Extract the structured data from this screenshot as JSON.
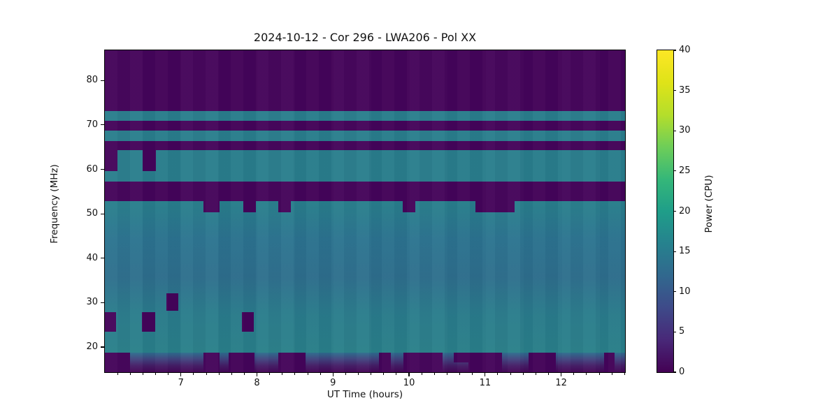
{
  "chart_data": {
    "type": "heatmap",
    "subtype": "radio-spectrogram",
    "title": "2024-10-12 - Cor 296 - LWA206 - Pol XX",
    "xlabel": "UT Time (hours)",
    "ylabel": "Frequency (MHz)",
    "xlim": [
      6.0,
      12.84
    ],
    "ylim": [
      14.35,
      86.8
    ],
    "xticks": [
      7,
      8,
      9,
      10,
      11,
      12
    ],
    "x_minor_step_hours": 0.166667,
    "yticks": [
      20,
      30,
      40,
      50,
      60,
      70,
      80
    ],
    "grid": false,
    "colorbar": {
      "label": "Power (CPU)",
      "ticks": [
        0,
        5,
        10,
        15,
        20,
        25,
        30,
        35,
        40
      ],
      "clim": [
        0,
        40
      ],
      "colormap": "viridis",
      "gradient_stops": [
        "#440154",
        "#482878",
        "#3e4a89",
        "#31688e",
        "#26828e",
        "#1f9e89",
        "#35b779",
        "#6ece58",
        "#b5de2b",
        "#dfe318",
        "#fde725"
      ]
    },
    "flag_color": "#45045a",
    "freq_bands": [
      {
        "f_low": 73.1,
        "f_high": 86.8,
        "power": 0,
        "colors": [
          "#45045a"
        ]
      },
      {
        "f_low": 71.0,
        "f_high": 73.1,
        "power": 17,
        "colors": [
          "#2a7f8d"
        ]
      },
      {
        "f_low": 68.8,
        "f_high": 71.0,
        "power": 0,
        "colors": [
          "#45045a"
        ]
      },
      {
        "f_low": 66.4,
        "f_high": 68.8,
        "power": 17,
        "colors": [
          "#2a7f8d"
        ]
      },
      {
        "f_low": 64.4,
        "f_high": 66.4,
        "power": 0,
        "colors": [
          "#45045a"
        ]
      },
      {
        "f_low": 57.3,
        "f_high": 64.4,
        "power": 17,
        "colors": [
          "#2a7f8d"
        ]
      },
      {
        "f_low": 52.8,
        "f_high": 57.3,
        "power": 0,
        "colors": [
          "#45045a"
        ]
      },
      {
        "f_low": 18.8,
        "f_high": 52.8,
        "power": "14-18",
        "colors": [
          "#28808c",
          "#2c7490",
          "#2e6f8d",
          "#2a7d8c",
          "#2a818a"
        ]
      },
      {
        "f_low": 14.35,
        "f_high": 18.8,
        "power": "0-15",
        "colors": [
          "#2e6d8e",
          "#41447f",
          "#451d66",
          "#440556"
        ]
      }
    ],
    "rfi_flag_blocks": [
      {
        "t_start": 6.0,
        "t_end": 6.17,
        "f_low": 59.6,
        "f_high": 64.4
      },
      {
        "t_start": 6.5,
        "t_end": 6.67,
        "f_low": 59.6,
        "f_high": 64.4
      },
      {
        "t_start": 7.3,
        "t_end": 7.51,
        "f_low": 50.4,
        "f_high": 52.8
      },
      {
        "t_start": 7.82,
        "t_end": 7.99,
        "f_low": 50.4,
        "f_high": 52.8
      },
      {
        "t_start": 8.28,
        "t_end": 8.45,
        "f_low": 50.4,
        "f_high": 52.8
      },
      {
        "t_start": 9.92,
        "t_end": 10.08,
        "f_low": 50.4,
        "f_high": 52.8
      },
      {
        "t_start": 10.87,
        "t_end": 11.39,
        "f_low": 50.4,
        "f_high": 52.8
      },
      {
        "t_start": 6.81,
        "t_end": 6.97,
        "f_low": 28.2,
        "f_high": 32.1
      },
      {
        "t_start": 6.0,
        "t_end": 6.15,
        "f_low": 23.5,
        "f_high": 27.9
      },
      {
        "t_start": 6.49,
        "t_end": 6.66,
        "f_low": 23.5,
        "f_high": 27.9
      },
      {
        "t_start": 7.8,
        "t_end": 7.96,
        "f_low": 23.5,
        "f_high": 27.9
      },
      {
        "t_start": 6.0,
        "t_end": 6.33,
        "f_low": 14.35,
        "f_high": 18.8
      },
      {
        "t_start": 7.3,
        "t_end": 7.51,
        "f_low": 14.35,
        "f_high": 18.8
      },
      {
        "t_start": 7.63,
        "t_end": 7.97,
        "f_low": 14.35,
        "f_high": 18.8
      },
      {
        "t_start": 8.28,
        "t_end": 8.64,
        "f_low": 14.35,
        "f_high": 18.8
      },
      {
        "t_start": 9.6,
        "t_end": 9.76,
        "f_low": 14.35,
        "f_high": 18.8
      },
      {
        "t_start": 9.93,
        "t_end": 10.44,
        "f_low": 14.35,
        "f_high": 18.8
      },
      {
        "t_start": 10.59,
        "t_end": 10.78,
        "f_low": 16.6,
        "f_high": 18.8
      },
      {
        "t_start": 10.78,
        "t_end": 11.22,
        "f_low": 14.35,
        "f_high": 18.8
      },
      {
        "t_start": 11.57,
        "t_end": 11.93,
        "f_low": 14.35,
        "f_high": 18.8
      },
      {
        "t_start": 12.56,
        "t_end": 12.7,
        "f_low": 14.35,
        "f_high": 18.8
      }
    ]
  }
}
